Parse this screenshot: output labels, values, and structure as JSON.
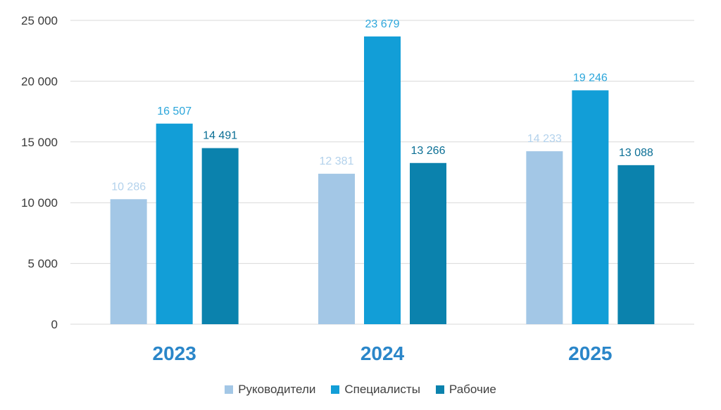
{
  "chart_data": {
    "type": "bar",
    "categories": [
      "2023",
      "2024",
      "2025"
    ],
    "series": [
      {
        "name": "Руководители",
        "values": [
          10286,
          12381,
          14233
        ],
        "labels": [
          "10 286",
          "12 381",
          "14 233"
        ],
        "color": "#a3c7e6",
        "label_color": "#b3d2ec"
      },
      {
        "name": "Специалисты",
        "values": [
          16507,
          23679,
          19246
        ],
        "labels": [
          "16 507",
          "23 679",
          "19 246"
        ],
        "color": "#129ed7",
        "label_color": "#2ba6db"
      },
      {
        "name": "Рабочие",
        "values": [
          14491,
          13266,
          13088
        ],
        "labels": [
          "14 491",
          "13 266",
          "13 088"
        ],
        "color": "#0b82ad",
        "label_color": "#0b6f95"
      }
    ],
    "yticks": [
      0,
      5000,
      10000,
      15000,
      20000,
      25000
    ],
    "ytick_labels": [
      "0",
      "5 000",
      "10 000",
      "15 000",
      "20 000",
      "25 000"
    ],
    "ylim": [
      0,
      25000
    ],
    "grid": true,
    "legend_position": "bottom",
    "category_label_color": "#2a86c9"
  }
}
